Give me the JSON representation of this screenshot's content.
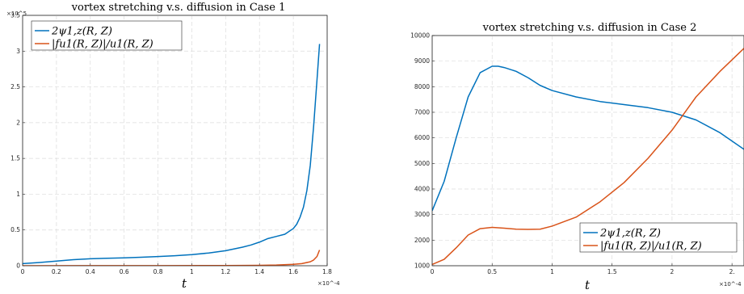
{
  "chart_data": [
    {
      "type": "line",
      "title": "vortex stretching v.s. diffusion in Case 1",
      "xlabel": "t",
      "ylabel": "",
      "x_exponent_label": "×10^-4",
      "y_exponent_label": "×10^5",
      "xlim": [
        0,
        1.8
      ],
      "ylim": [
        0,
        3.5
      ],
      "xticks": [
        "0",
        "0.2",
        "0.4",
        "0.6",
        "0.8",
        "1",
        "1.2",
        "1.4",
        "1.6",
        "1.8"
      ],
      "yticks": [
        "0",
        "0.5",
        "1",
        "1.5",
        "2",
        "2.5",
        "3",
        "3.5"
      ],
      "grid": true,
      "legend_position": "top-left",
      "series": [
        {
          "name": "2ψ1,z(R, Z)",
          "color": "#0072BD",
          "x": [
            0,
            0.1,
            0.2,
            0.3,
            0.4,
            0.5,
            0.6,
            0.7,
            0.8,
            0.9,
            1.0,
            1.1,
            1.2,
            1.3,
            1.35,
            1.4,
            1.45,
            1.5,
            1.55,
            1.6,
            1.62,
            1.64,
            1.66,
            1.68,
            1.7,
            1.72,
            1.74,
            1.755
          ],
          "y": [
            0.03,
            0.045,
            0.065,
            0.085,
            0.098,
            0.105,
            0.11,
            0.118,
            0.128,
            0.14,
            0.155,
            0.178,
            0.21,
            0.26,
            0.29,
            0.33,
            0.38,
            0.41,
            0.44,
            0.52,
            0.58,
            0.68,
            0.82,
            1.05,
            1.4,
            1.95,
            2.6,
            3.1
          ]
        },
        {
          "name": "|fu1(R, Z)|/u1(R, Z)",
          "color": "#D95319",
          "x": [
            0,
            0.4,
            0.8,
            1.2,
            1.4,
            1.5,
            1.6,
            1.65,
            1.7,
            1.72,
            1.74,
            1.755
          ],
          "y": [
            0,
            0.001,
            0.002,
            0.003,
            0.006,
            0.01,
            0.02,
            0.03,
            0.055,
            0.08,
            0.13,
            0.22
          ]
        }
      ]
    },
    {
      "type": "line",
      "title": "vortex stretching v.s. diffusion in Case 2",
      "xlabel": "t",
      "ylabel": "",
      "x_exponent_label": "×10^-4",
      "xlim": [
        0,
        2.6
      ],
      "ylim": [
        1000,
        10000
      ],
      "xticks": [
        "0",
        "0.5",
        "1",
        "1.5",
        "2",
        "2."
      ],
      "yticks": [
        "1000",
        "2000",
        "3000",
        "4000",
        "5000",
        "6000",
        "7000",
        "8000",
        "9000",
        "10000"
      ],
      "grid": true,
      "legend_position": "bottom-right",
      "series": [
        {
          "name": "2ψ1,z(R, Z)",
          "color": "#0072BD",
          "x": [
            0,
            0.1,
            0.2,
            0.3,
            0.4,
            0.5,
            0.55,
            0.6,
            0.7,
            0.8,
            0.9,
            1.0,
            1.2,
            1.4,
            1.6,
            1.8,
            2.0,
            2.2,
            2.4,
            2.6
          ],
          "y": [
            3150,
            4300,
            6000,
            7600,
            8550,
            8800,
            8800,
            8750,
            8600,
            8350,
            8050,
            7850,
            7600,
            7420,
            7300,
            7180,
            7000,
            6700,
            6200,
            5550
          ]
        },
        {
          "name": "|fu1(R, Z)|/u1(R, Z)",
          "color": "#D95319",
          "x": [
            0,
            0.1,
            0.2,
            0.3,
            0.4,
            0.5,
            0.6,
            0.7,
            0.8,
            0.9,
            1.0,
            1.2,
            1.4,
            1.6,
            1.8,
            2.0,
            2.2,
            2.4,
            2.6
          ],
          "y": [
            1050,
            1250,
            1700,
            2200,
            2450,
            2500,
            2470,
            2430,
            2420,
            2430,
            2550,
            2900,
            3500,
            4250,
            5200,
            6300,
            7600,
            8600,
            9500
          ]
        }
      ]
    }
  ]
}
